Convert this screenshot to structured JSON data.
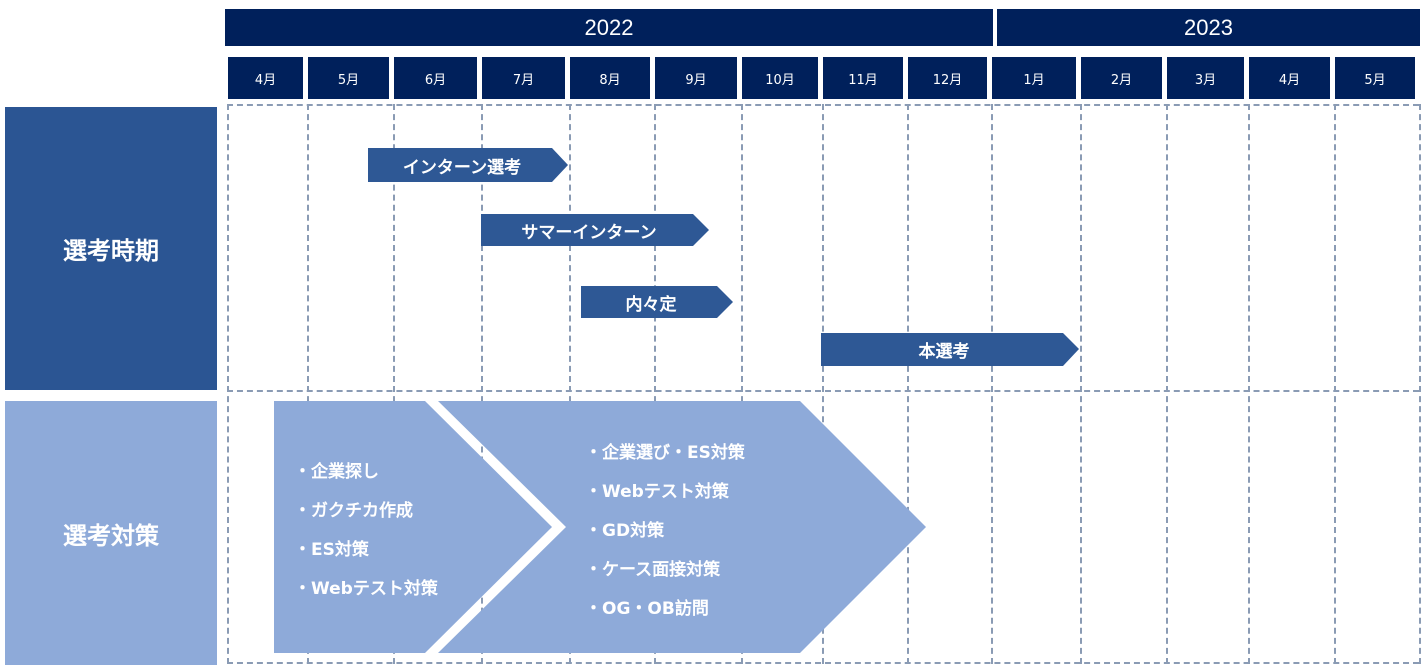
{
  "years": [
    "2022",
    "2023"
  ],
  "months": [
    "4月",
    "5月",
    "6月",
    "7月",
    "8月",
    "9月",
    "10月",
    "11月",
    "12月",
    "1月",
    "2月",
    "3月",
    "4月",
    "5月"
  ],
  "rows": {
    "schedule_label": "選考時期",
    "prep_label": "選考対策"
  },
  "schedule_bars": [
    "インターン選考",
    "サマーインターン",
    "内々定",
    "本選考"
  ],
  "prep_phase1": [
    "・企業探し",
    "・ガクチカ作成",
    "・ES対策",
    "・Webテスト対策"
  ],
  "prep_phase2": [
    "・企業選び・ES対策",
    "・Webテスト対策",
    "・GD対策",
    "・ケース面接対策",
    "・OG・OB訪問"
  ],
  "colors": {
    "header": "#00205b",
    "schedule": "#2b5593",
    "bar": "#2e5895",
    "prep": "#8eaad9",
    "grid": "#8a9bb4"
  }
}
